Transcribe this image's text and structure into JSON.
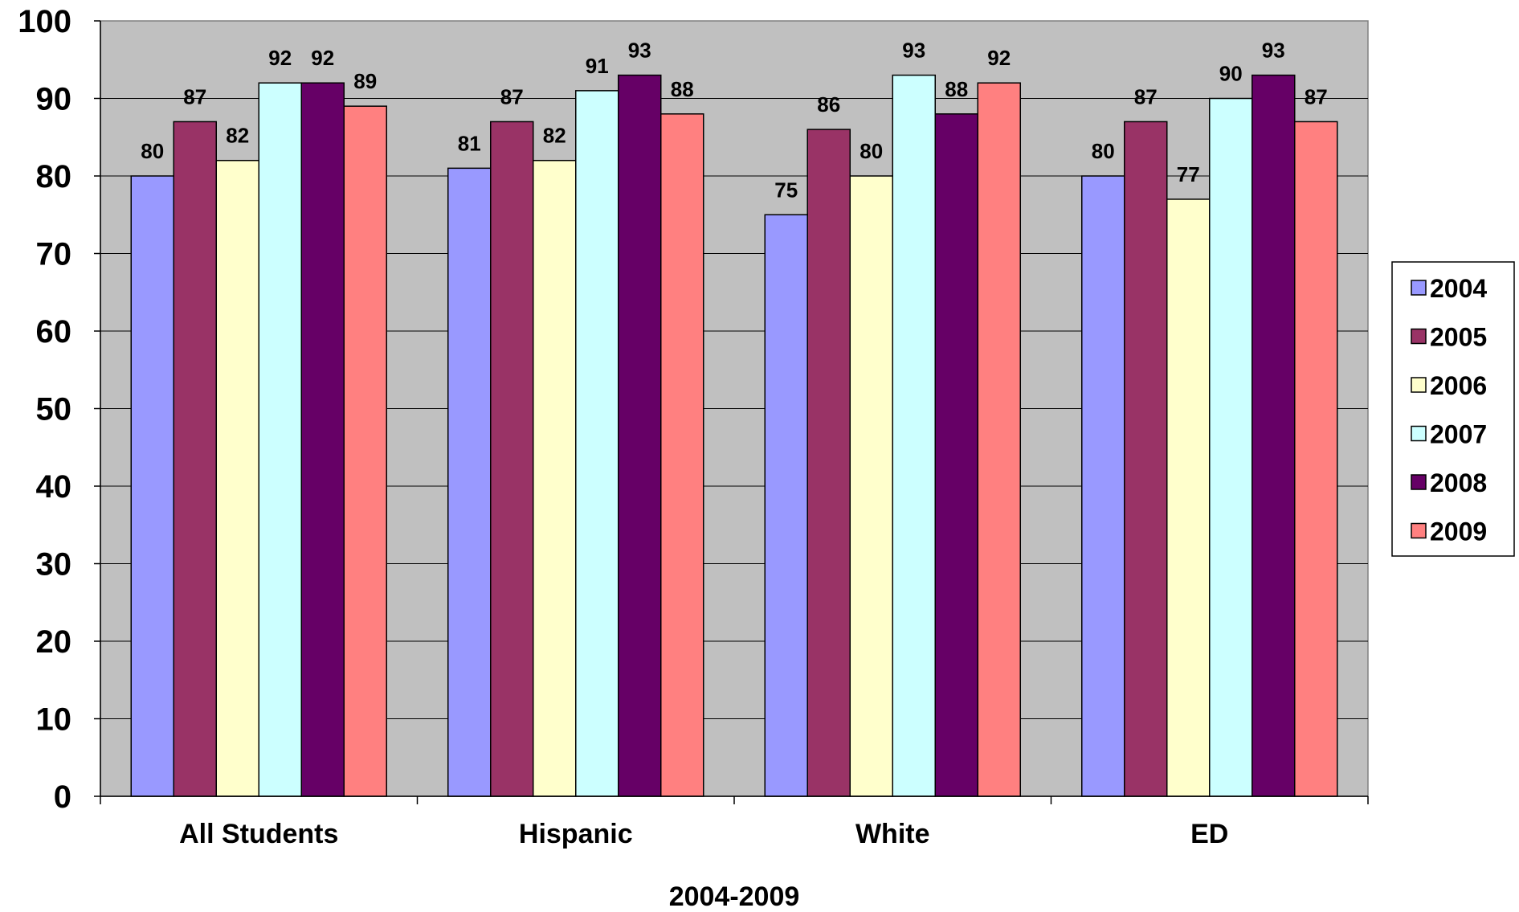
{
  "chart_data": {
    "type": "bar",
    "title": "",
    "xlabel": "2004-2009",
    "ylabel": "",
    "ylim": [
      0,
      100
    ],
    "yticks": [
      0,
      10,
      20,
      30,
      40,
      50,
      60,
      70,
      80,
      90,
      100
    ],
    "grid": true,
    "legend_position": "right",
    "categories": [
      "All Students",
      "Hispanic",
      "White",
      "ED"
    ],
    "series": [
      {
        "name": "2004",
        "color": "#9999ff",
        "values": [
          80,
          81,
          75,
          80
        ]
      },
      {
        "name": "2005",
        "color": "#993366",
        "values": [
          87,
          87,
          86,
          87
        ]
      },
      {
        "name": "2006",
        "color": "#ffffcc",
        "values": [
          82,
          82,
          80,
          77
        ]
      },
      {
        "name": "2007",
        "color": "#ccffff",
        "values": [
          92,
          91,
          93,
          90
        ]
      },
      {
        "name": "2008",
        "color": "#660066",
        "values": [
          92,
          93,
          88,
          93
        ]
      },
      {
        "name": "2009",
        "color": "#ff8080",
        "values": [
          89,
          88,
          92,
          87
        ]
      }
    ],
    "plot_background": "#c0c0c0"
  }
}
